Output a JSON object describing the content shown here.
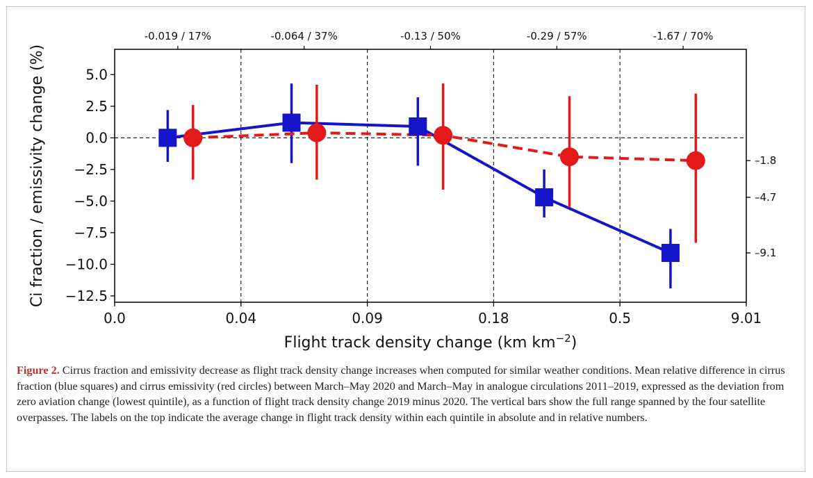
{
  "figure": {
    "caption_label": "Figure 2.",
    "caption_text": " Cirrus fraction and emissivity decrease as flight track density change increases when computed for similar weather conditions. Mean relative difference in cirrus fraction (blue squares) and cirrus emissivity (red circles) between March–May 2020 and March–May in analogue circulations 2011–2019, expressed as the deviation from zero aviation change (lowest quintile), as a function of flight track density change 2019 minus 2020. The vertical bars show the full range spanned by the four satellite overpasses. The labels on the top indicate the average change in flight track density within each quintile in absolute and in relative numbers."
  },
  "chart_data": {
    "type": "line",
    "xlabel": "Flight track density change (km km",
    "xlabel_sup": "−2",
    "xlabel_end": ")",
    "ylabel": "Ci fraction / emissivity change (%)",
    "x_ticks": [
      "0.0",
      "0.04",
      "0.09",
      "0.18",
      "0.5",
      "9.01"
    ],
    "y_ticks": [
      5.0,
      2.5,
      0.0,
      -2.5,
      -5.0,
      -7.5,
      -10.0,
      -12.5
    ],
    "y_tick_labels": [
      "5.0",
      "2.5",
      "0.0",
      "−2.5",
      "−5.0",
      "−7.5",
      "−10.0",
      "−12.5"
    ],
    "ylim": [
      -13.0,
      7.0
    ],
    "xlim": [
      0,
      5
    ],
    "quintile_boundaries": [
      1,
      2,
      3,
      4
    ],
    "zero_line": 0.0,
    "top_labels": [
      "-0.019 / 17%",
      "-0.064 / 37%",
      "-0.13 / 50%",
      "-0.29 / 57%",
      "-1.67 / 70%"
    ],
    "right_labels": [
      {
        "y": -1.8,
        "text": "–1.8"
      },
      {
        "y": -4.7,
        "text": "–4.7"
      },
      {
        "y": -9.1,
        "text": "–9.1"
      }
    ],
    "series": [
      {
        "key": "fraction",
        "marker": "square",
        "color": "#1414c8",
        "line_style": "solid",
        "x": [
          0.42,
          1.4,
          2.4,
          3.4,
          4.4
        ],
        "y": [
          0.0,
          1.2,
          0.9,
          -4.7,
          -9.1
        ],
        "err_low": [
          -1.9,
          -2.0,
          -2.2,
          -6.3,
          -11.9
        ],
        "err_high": [
          2.2,
          4.3,
          3.2,
          -2.5,
          -7.2
        ]
      },
      {
        "key": "emissivity",
        "marker": "circle",
        "color": "#e41a1a",
        "line_style": "dashed",
        "x": [
          0.62,
          1.6,
          2.6,
          3.6,
          4.6
        ],
        "y": [
          0.0,
          0.4,
          0.2,
          -1.5,
          -1.8
        ],
        "err_low": [
          -3.3,
          -3.3,
          -4.1,
          -5.5,
          -8.3
        ],
        "err_high": [
          2.6,
          4.2,
          4.3,
          3.3,
          3.5
        ]
      }
    ]
  }
}
